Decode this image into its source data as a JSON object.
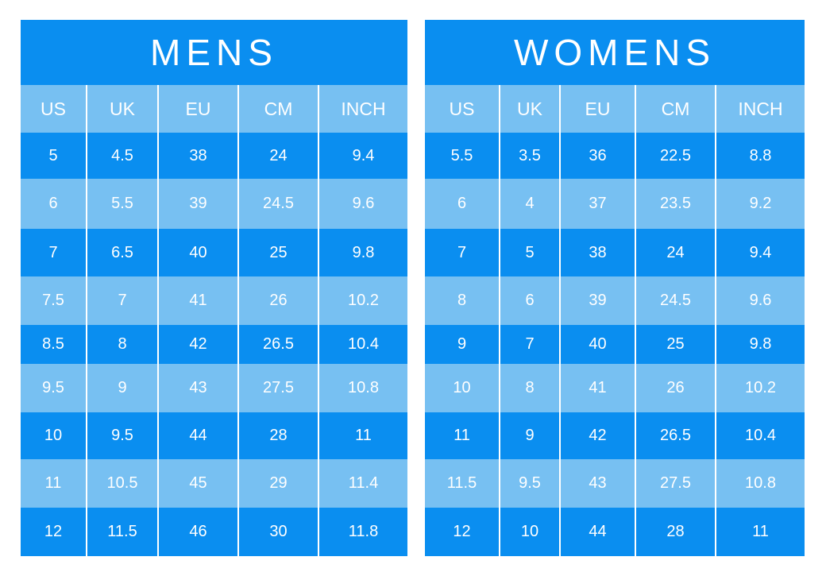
{
  "mens": {
    "title": "MENS",
    "headers": [
      "US",
      "UK",
      "EU",
      "CM",
      "INCH"
    ],
    "rows": [
      [
        "5",
        "4.5",
        "38",
        "24",
        "9.4"
      ],
      [
        "6",
        "5.5",
        "39",
        "24.5",
        "9.6"
      ],
      [
        "7",
        "6.5",
        "40",
        "25",
        "9.8"
      ],
      [
        "7.5",
        "7",
        "41",
        "26",
        "10.2"
      ],
      [
        "8.5",
        "8",
        "42",
        "26.5",
        "10.4"
      ],
      [
        "9.5",
        "9",
        "43",
        "27.5",
        "10.8"
      ],
      [
        "10",
        "9.5",
        "44",
        "28",
        "11"
      ],
      [
        "11",
        "10.5",
        "45",
        "29",
        "11.4"
      ],
      [
        "12",
        "11.5",
        "46",
        "30",
        "11.8"
      ]
    ]
  },
  "womens": {
    "title": "WOMENS",
    "headers": [
      "US",
      "UK",
      "EU",
      "CM",
      "INCH"
    ],
    "rows": [
      [
        "5.5",
        "3.5",
        "36",
        "22.5",
        "8.8"
      ],
      [
        "6",
        "4",
        "37",
        "23.5",
        "9.2"
      ],
      [
        "7",
        "5",
        "38",
        "24",
        "9.4"
      ],
      [
        "8",
        "6",
        "39",
        "24.5",
        "9.6"
      ],
      [
        "9",
        "7",
        "40",
        "25",
        "9.8"
      ],
      [
        "10",
        "8",
        "41",
        "26",
        "10.2"
      ],
      [
        "11",
        "9",
        "42",
        "26.5",
        "10.4"
      ],
      [
        "11.5",
        "9.5",
        "43",
        "27.5",
        "10.8"
      ],
      [
        "12",
        "10",
        "44",
        "28",
        "11"
      ]
    ]
  },
  "colors": {
    "dark_blue": "#0a8ef0",
    "light_blue": "#77c0f2",
    "text": "#ffffff"
  }
}
